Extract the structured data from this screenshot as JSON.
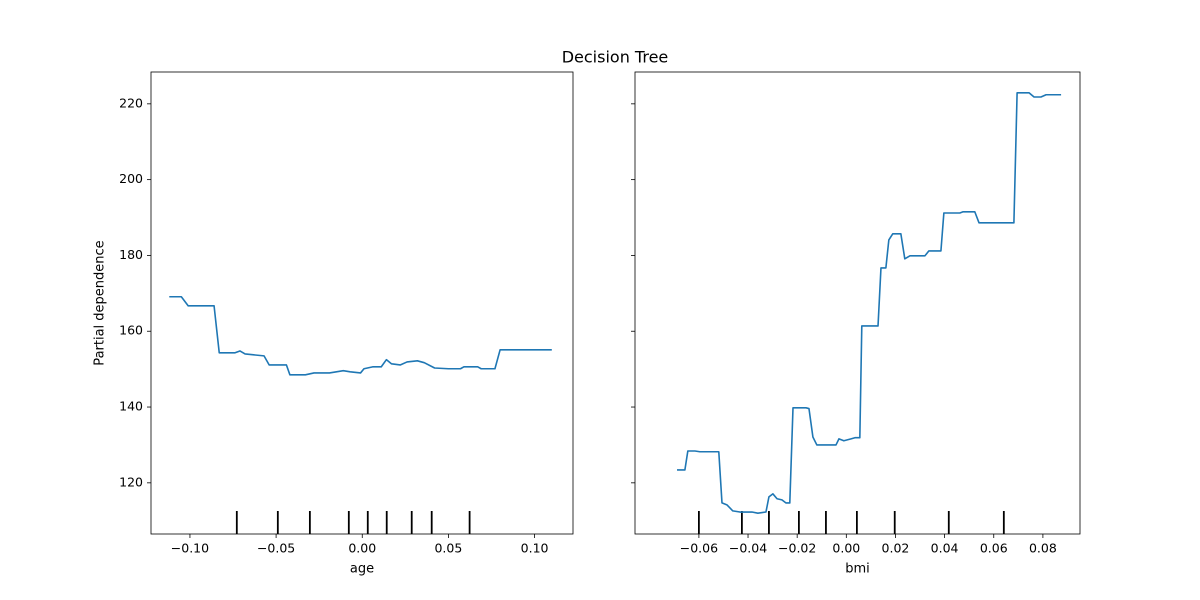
{
  "title": "Decision Tree",
  "chart_data": [
    {
      "type": "line",
      "xlabel": "age",
      "ylabel": "Partial dependence",
      "xlim": [
        -0.1226,
        0.1223
      ],
      "ylim": [
        106.5,
        228.4
      ],
      "xticks": [
        {
          "value": -0.1,
          "label": "−0.10"
        },
        {
          "value": -0.05,
          "label": "−0.05"
        },
        {
          "value": 0,
          "label": "0.00"
        },
        {
          "value": 0.05,
          "label": "0.05"
        },
        {
          "value": 0.1,
          "label": "0.10"
        }
      ],
      "yticks": [
        120,
        140,
        160,
        180,
        200,
        220
      ],
      "x": [
        -0.112,
        -0.105,
        -0.101,
        -0.086,
        -0.083,
        -0.074,
        -0.071,
        -0.068,
        -0.057,
        -0.054,
        -0.044,
        -0.042,
        -0.033,
        -0.028,
        -0.019,
        -0.011,
        -0.007,
        -0.001,
        0.001,
        0.006,
        0.011,
        0.014,
        0.017,
        0.022,
        0.026,
        0.032,
        0.036,
        0.042,
        0.05,
        0.057,
        0.059,
        0.067,
        0.069,
        0.077,
        0.08,
        0.11
      ],
      "series": [
        {
          "color": "#1f77b4",
          "values": [
            169.1,
            169.1,
            166.7,
            166.7,
            154.3,
            154.3,
            154.8,
            154.0,
            153.5,
            151.1,
            151.1,
            148.5,
            148.5,
            149.0,
            149.0,
            149.6,
            149.3,
            149.0,
            150.1,
            150.6,
            150.6,
            152.5,
            151.4,
            151.1,
            151.9,
            152.2,
            151.7,
            150.3,
            150.1,
            150.1,
            150.6,
            150.6,
            150.1,
            150.1,
            155.1,
            155.1
          ]
        }
      ],
      "deciles": [
        -0.0728,
        -0.049,
        -0.0304,
        -0.0078,
        0.0032,
        0.0142,
        0.0287,
        0.0403,
        0.0623
      ]
    },
    {
      "type": "line",
      "xlabel": "bmi",
      "xlim": [
        -0.086,
        0.0951
      ],
      "ylim": [
        106.5,
        228.4
      ],
      "xticks": [
        {
          "value": -0.06,
          "label": "−0.06"
        },
        {
          "value": -0.04,
          "label": "−0.04"
        },
        {
          "value": -0.02,
          "label": "−0.02"
        },
        {
          "value": 0,
          "label": "0.00"
        },
        {
          "value": 0.02,
          "label": "0.02"
        },
        {
          "value": 0.04,
          "label": "0.04"
        },
        {
          "value": 0.06,
          "label": "0.06"
        },
        {
          "value": 0.08,
          "label": "0.08"
        }
      ],
      "yticks": [
        120,
        140,
        160,
        180,
        200,
        220
      ],
      "x": [
        -0.0689,
        -0.0657,
        -0.0645,
        -0.0616,
        -0.0596,
        -0.0519,
        -0.0506,
        -0.0486,
        -0.0462,
        -0.0433,
        -0.0384,
        -0.036,
        -0.0327,
        -0.0315,
        -0.0299,
        -0.0282,
        -0.0262,
        -0.0246,
        -0.023,
        -0.0217,
        -0.0164,
        -0.0152,
        -0.0136,
        -0.012,
        -0.0042,
        -0.003,
        -0.001,
        0.0019,
        0.0035,
        0.0055,
        0.0063,
        0.0129,
        0.0141,
        0.0161,
        0.0173,
        0.0189,
        0.0222,
        0.0238,
        0.0259,
        0.032,
        0.0336,
        0.0385,
        0.0397,
        0.0462,
        0.0474,
        0.0523,
        0.054,
        0.0682,
        0.0695,
        0.0744,
        0.0764,
        0.0792,
        0.0813,
        0.0874
      ],
      "series": [
        {
          "color": "#1f77b4",
          "values": [
            123.4,
            123.4,
            128.4,
            128.4,
            128.2,
            128.2,
            114.7,
            114.2,
            112.6,
            112.3,
            112.3,
            112.0,
            112.3,
            116.3,
            117.1,
            115.8,
            115.5,
            114.7,
            114.7,
            139.8,
            139.8,
            139.6,
            132.1,
            130.0,
            130.0,
            131.6,
            131.1,
            131.6,
            131.9,
            131.9,
            161.4,
            161.4,
            176.7,
            176.7,
            184.1,
            185.7,
            185.7,
            179.1,
            179.9,
            179.9,
            181.2,
            181.2,
            191.2,
            191.2,
            191.5,
            191.5,
            188.6,
            188.6,
            222.9,
            222.9,
            221.8,
            221.8,
            222.4,
            222.4
          ]
        }
      ],
      "deciles": [
        -0.06,
        -0.0425,
        -0.0315,
        -0.0193,
        -0.0083,
        0.0043,
        0.0197,
        0.0417,
        0.0641
      ]
    }
  ]
}
